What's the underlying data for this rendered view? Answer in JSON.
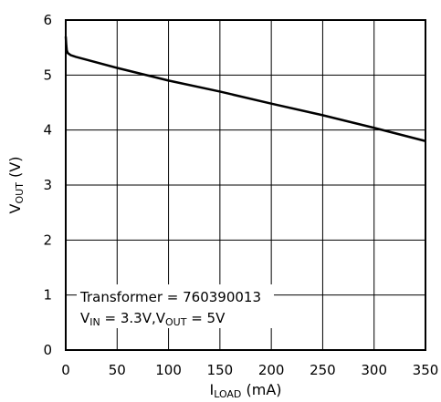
{
  "chart_data": {
    "type": "line",
    "xlabel": {
      "main": "I",
      "sub": "LOAD",
      "unit": " (mA)"
    },
    "ylabel": {
      "main": "V",
      "sub": "OUT",
      "unit": " (V)"
    },
    "xlim": [
      0,
      350
    ],
    "ylim": [
      0,
      6
    ],
    "xticks": [
      "0",
      "50",
      "100",
      "150",
      "200",
      "250",
      "300",
      "350"
    ],
    "yticks": [
      "0",
      "1",
      "2",
      "3",
      "4",
      "5",
      "6"
    ],
    "grid": true,
    "series": [
      {
        "x": [
          0,
          0.5,
          1,
          2,
          5,
          10,
          20,
          50,
          100,
          150,
          200,
          250,
          300,
          350
        ],
        "y": [
          5.7,
          5.55,
          5.45,
          5.4,
          5.36,
          5.33,
          5.28,
          5.13,
          4.9,
          4.7,
          4.48,
          4.27,
          4.04,
          3.8
        ]
      }
    ],
    "annotations": {
      "line1": "Transformer = 760390013",
      "line2": {
        "vin_main": "V",
        "vin_sub": "IN",
        "vin_value": " = 3.3V,",
        "vout_main": "V",
        "vout_sub": "OUT",
        "vout_value": " = 5V"
      }
    }
  }
}
